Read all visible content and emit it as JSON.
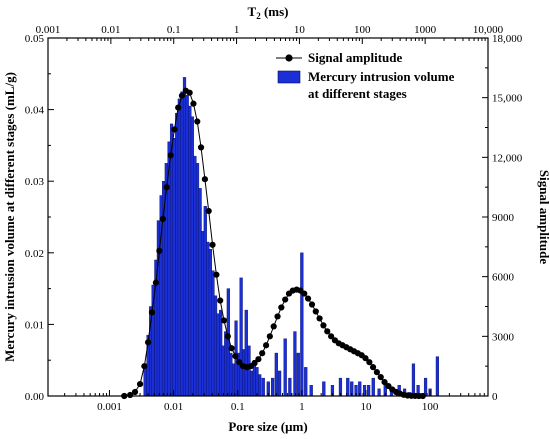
{
  "chart_data": {
    "type": "bar",
    "xlabel_bottom": "Pore size (μm)",
    "xlabel_top_main": "T",
    "xlabel_top_sub": "2",
    "xlabel_top_unit": " (ms)",
    "ylabel_left": "Mercury intrusion volume at different stages (mL/g)",
    "ylabel_right": "Signal amplitude",
    "x_scale": "log",
    "x_range": [
      0.00011,
      800
    ],
    "y_left_range": [
      0,
      0.05
    ],
    "y_right_range": [
      0,
      18000
    ],
    "x_ticks_bottom": [
      {
        "v": 0.001,
        "label": "0.001"
      },
      {
        "v": 0.01,
        "label": "0.01"
      },
      {
        "v": 0.1,
        "label": "0.1"
      },
      {
        "v": 1,
        "label": "1"
      },
      {
        "v": 10,
        "label": "10"
      },
      {
        "v": 100,
        "label": "100"
      }
    ],
    "x_ticks_top": [
      {
        "label": "0.001"
      },
      {
        "label": "0.01"
      },
      {
        "label": "0.1"
      },
      {
        "label": "1"
      },
      {
        "label": "10"
      },
      {
        "label": "100"
      },
      {
        "label": "1000"
      },
      {
        "label": "10,000"
      }
    ],
    "y_left_ticks": [
      {
        "v": 0,
        "label": "0.00"
      },
      {
        "v": 0.01,
        "label": "0.01"
      },
      {
        "v": 0.02,
        "label": "0.02"
      },
      {
        "v": 0.03,
        "label": "0.03"
      },
      {
        "v": 0.04,
        "label": "0.04"
      },
      {
        "v": 0.05,
        "label": "0.05"
      }
    ],
    "y_right_ticks": [
      {
        "v": 0,
        "label": "0"
      },
      {
        "v": 3000,
        "label": "3000"
      },
      {
        "v": 6000,
        "label": "6000"
      },
      {
        "v": 9000,
        "label": "9000"
      },
      {
        "v": 12000,
        "label": "12,000"
      },
      {
        "v": 15000,
        "label": "15,000"
      },
      {
        "v": 18000,
        "label": "18,000"
      }
    ],
    "legend": {
      "position": "top-right",
      "items": [
        {
          "label": "Signal amplitude",
          "marker": "line-dot"
        },
        {
          "label_line1": "Mercury intrusion volume",
          "label_line2": "at different stages",
          "marker": "bar"
        }
      ]
    },
    "bar_color": "#1a2fd6",
    "bar_edge": "#0a0f5a",
    "line_color": "#000000",
    "series": [
      {
        "name": "Mercury intrusion volume at different stages",
        "axis": "left",
        "kind": "bar",
        "x": [
          0.0036,
          0.004,
          0.0044,
          0.0048,
          0.0053,
          0.0058,
          0.0064,
          0.007,
          0.0077,
          0.0085,
          0.0093,
          0.0102,
          0.0112,
          0.0123,
          0.0135,
          0.0148,
          0.0163,
          0.0179,
          0.0196,
          0.0215,
          0.0236,
          0.0259,
          0.0284,
          0.0312,
          0.0342,
          0.0375,
          0.0411,
          0.0451,
          0.0494,
          0.0542,
          0.0594,
          0.0651,
          0.0714,
          0.0783,
          0.0859,
          0.0942,
          0.103,
          0.113,
          0.124,
          0.136,
          0.15,
          0.165,
          0.182,
          0.2,
          0.22,
          0.25,
          0.3,
          0.35,
          0.4,
          0.45,
          0.55,
          0.65,
          0.78,
          0.88,
          1.0,
          1.15,
          1.4,
          2.2,
          3.0,
          4.0,
          5.2,
          6.0,
          7.0,
          8.0,
          9.5,
          11,
          13,
          16,
          20,
          25,
          33,
          40,
          48,
          55,
          65,
          85,
          100,
          130
        ],
        "values": [
          0.0045,
          0.0085,
          0.0125,
          0.0155,
          0.019,
          0.0245,
          0.028,
          0.03,
          0.0325,
          0.0355,
          0.038,
          0.036,
          0.0395,
          0.0415,
          0.0425,
          0.0445,
          0.042,
          0.0405,
          0.039,
          0.0335,
          0.0325,
          0.029,
          0.023,
          0.0265,
          0.0215,
          0.0205,
          0.0175,
          0.014,
          0.0115,
          0.012,
          0.007,
          0.009,
          0.015,
          0.006,
          0.0045,
          0.0105,
          0.006,
          0.0165,
          0.0065,
          0.012,
          0.007,
          0.0035,
          0.005,
          0.004,
          0.003,
          0.0025,
          0.002,
          0.0025,
          0.006,
          0.0035,
          0.008,
          0.0025,
          0.009,
          0.006,
          0.02,
          0.004,
          0.0015,
          0.002,
          0.0015,
          0.0025,
          0.0025,
          0.002,
          0.0015,
          0.002,
          0.0015,
          0.0015,
          0.0025,
          0.001,
          0.002,
          0.001,
          0.0015,
          0.001,
          0.0005,
          0.0045,
          0.0015,
          0.0025,
          0.001,
          0.0055
        ]
      },
      {
        "name": "Signal amplitude",
        "axis": "right",
        "kind": "line-dot",
        "x": [
          0.0017,
          0.0021,
          0.0025,
          0.003,
          0.0035,
          0.004,
          0.0046,
          0.0053,
          0.006,
          0.0068,
          0.0078,
          0.009,
          0.0103,
          0.0118,
          0.0135,
          0.0155,
          0.0178,
          0.0204,
          0.0234,
          0.0268,
          0.0308,
          0.0353,
          0.0405,
          0.0465,
          0.0533,
          0.0611,
          0.0701,
          0.0804,
          0.0923,
          0.106,
          0.121,
          0.139,
          0.16,
          0.183,
          0.21,
          0.241,
          0.277,
          0.317,
          0.364,
          0.418,
          0.479,
          0.55,
          0.631,
          0.723,
          0.83,
          0.952,
          1.09,
          1.25,
          1.44,
          1.65,
          1.89,
          2.17,
          2.49,
          2.86,
          3.28,
          3.76,
          4.31,
          4.95,
          5.68,
          6.51,
          7.47,
          8.57,
          9.83,
          11.3,
          12.9,
          14.8,
          17.0,
          19.5,
          22.4,
          25.7,
          29.5,
          33.8,
          38.8,
          44.5,
          51.0,
          58.5,
          67.1,
          77.0
        ],
        "values": [
          0,
          50,
          200,
          600,
          1500,
          2700,
          4200,
          5700,
          7300,
          8900,
          10500,
          12100,
          13400,
          14500,
          15100,
          15350,
          15250,
          14700,
          13800,
          12500,
          10900,
          9300,
          7600,
          6100,
          4800,
          3800,
          3000,
          2400,
          2000,
          1700,
          1500,
          1450,
          1500,
          1650,
          1850,
          2150,
          2550,
          3000,
          3500,
          4000,
          4450,
          4850,
          5150,
          5300,
          5350,
          5300,
          5150,
          4900,
          4600,
          4250,
          3900,
          3550,
          3250,
          3000,
          2800,
          2650,
          2550,
          2450,
          2350,
          2250,
          2150,
          2050,
          1900,
          1700,
          1450,
          1200,
          950,
          700,
          500,
          330,
          200,
          120,
          60,
          25,
          8,
          2,
          0,
          0
        ]
      }
    ]
  }
}
